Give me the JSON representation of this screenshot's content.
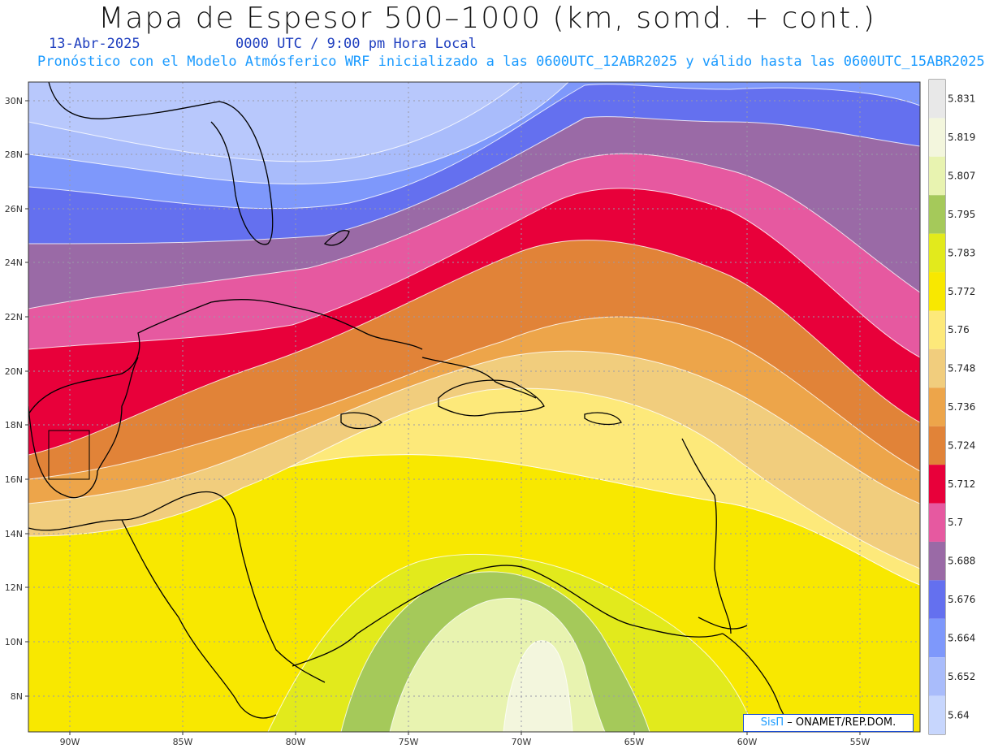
{
  "title": "Mapa de Espesor 500–1000 (km, somd. + cont.)",
  "date": "13-Abr-2025",
  "valid_time": "0000 UTC / 9:00 pm Hora Local",
  "description": "Pronóstico con el Modelo Atmósferico WRF inicializado a las 0600UTC_12ABR2025 y válido hasta las  0600UTC_15ABR2025",
  "credit": {
    "sis": "SisΠ",
    "rest": " – ONAMET/REP.DOM."
  },
  "map": {
    "lat_labels": [
      "30N",
      "28N",
      "26N",
      "24N",
      "22N",
      "20N",
      "18N",
      "16N",
      "14N",
      "12N",
      "10N",
      "8N"
    ],
    "lon_labels": [
      "90W",
      "85W",
      "80W",
      "75W",
      "70W",
      "65W",
      "60W",
      "55W"
    ]
  },
  "colorbar": {
    "levels": [
      "5.831",
      "5.819",
      "5.807",
      "5.795",
      "5.783",
      "5.772",
      "5.76",
      "5.748",
      "5.736",
      "5.724",
      "5.712",
      "5.7",
      "5.688",
      "5.676",
      "5.664",
      "5.652",
      "5.64"
    ],
    "colors": [
      "#e8e8e8",
      "#f3f6dd",
      "#e8f3b0",
      "#a5c95a",
      "#e2ea1c",
      "#f8e800",
      "#fde97a",
      "#f1cd7d",
      "#eda54a",
      "#e18338",
      "#e8003a",
      "#e659a0",
      "#9a6aa6",
      "#6470ef",
      "#7e98fb",
      "#a9bcfb",
      "#c7d6fd"
    ]
  }
}
